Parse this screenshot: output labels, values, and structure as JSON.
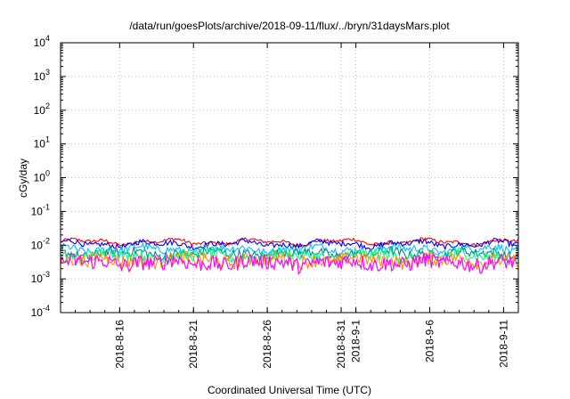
{
  "chart_data": {
    "type": "line",
    "title": "/data/run/goesPlots/archive/2018-09-11/flux/../bryn/31daysMars.plot",
    "xlabel": "Coordinated Universal Time (UTC)",
    "ylabel": "cGy/day",
    "yscale": "log",
    "ylim": [
      0.0001,
      10000
    ],
    "y_ticks": [
      {
        "base": "10",
        "exp": "4",
        "value": 10000
      },
      {
        "base": "10",
        "exp": "3",
        "value": 1000
      },
      {
        "base": "10",
        "exp": "2",
        "value": 100
      },
      {
        "base": "10",
        "exp": "1",
        "value": 10
      },
      {
        "base": "10",
        "exp": "0",
        "value": 1
      },
      {
        "base": "10",
        "exp": "-1",
        "value": 0.1
      },
      {
        "base": "10",
        "exp": "-2",
        "value": 0.01
      },
      {
        "base": "10",
        "exp": "-3",
        "value": 0.001
      },
      {
        "base": "10",
        "exp": "-4",
        "value": 0.0001
      }
    ],
    "xlim": [
      "2018-08-12",
      "2018-09-12"
    ],
    "x_ticks": [
      {
        "label": "2018-8-16",
        "date": "2018-08-16"
      },
      {
        "label": "2018-8-21",
        "date": "2018-08-21"
      },
      {
        "label": "2018-8-26",
        "date": "2018-08-26"
      },
      {
        "label": "2018-8-31",
        "date": "2018-08-31"
      },
      {
        "label": "2018-9-1",
        "date": "2018-09-01"
      },
      {
        "label": "2018-9-6",
        "date": "2018-09-06"
      },
      {
        "label": "2018-9-11",
        "date": "2018-09-11"
      }
    ],
    "grid": true,
    "series": [
      {
        "color": "#ff0000",
        "level": 0.0125
      },
      {
        "color": "#0000ff",
        "level": 0.0108
      },
      {
        "color": "#00bfff",
        "level": 0.0075
      },
      {
        "color": "#008b8b",
        "level": 0.0056
      },
      {
        "color": "#00ff7f",
        "level": 0.0048
      },
      {
        "color": "#ff8c00",
        "level": 0.0036
      },
      {
        "color": "#ff00ff",
        "level": 0.003
      }
    ]
  }
}
